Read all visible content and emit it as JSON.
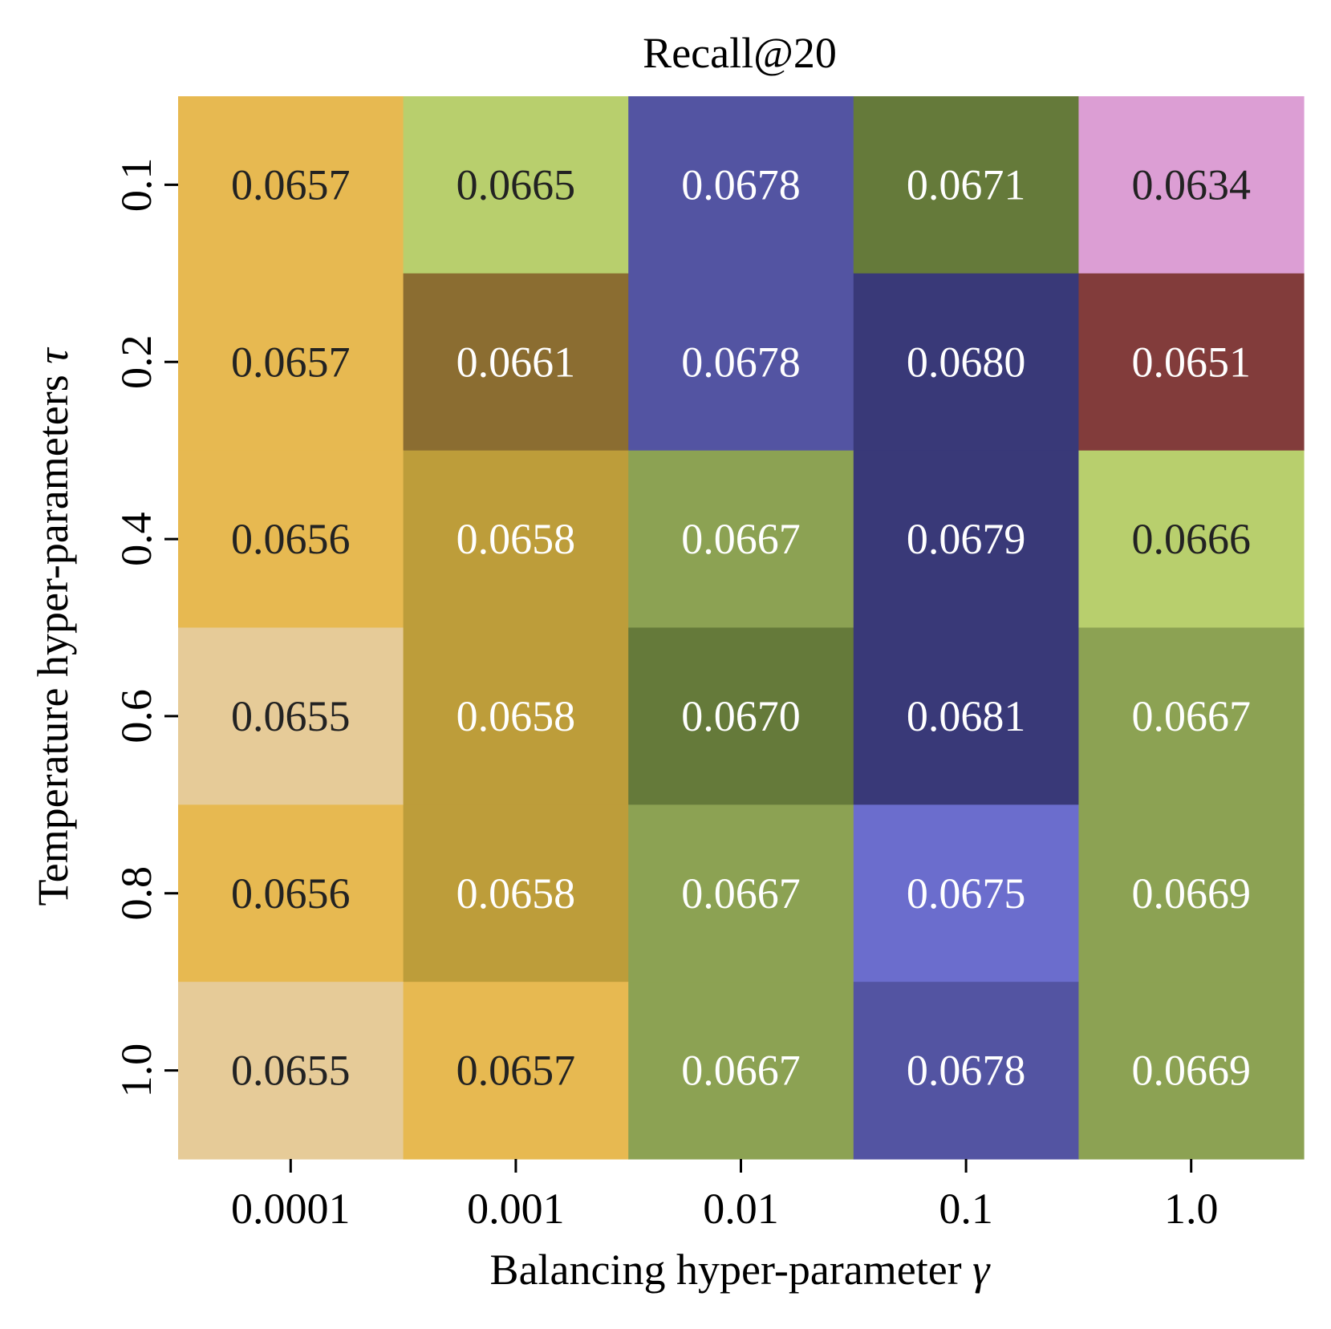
{
  "chart_data": {
    "type": "heatmap",
    "title": "Recall@20",
    "xlabel": "Balancing hyper-parameter",
    "xlabel_symbol": "γ",
    "ylabel": "Temperature hyper-parameters",
    "ylabel_symbol": "τ",
    "x_categories": [
      "0.0001",
      "0.001",
      "0.01",
      "0.1",
      "1.0"
    ],
    "y_categories": [
      "0.1",
      "0.2",
      "0.4",
      "0.6",
      "0.8",
      "1.0"
    ],
    "values": [
      [
        "0.0657",
        "0.0665",
        "0.0678",
        "0.0671",
        "0.0634"
      ],
      [
        "0.0657",
        "0.0661",
        "0.0678",
        "0.0680",
        "0.0651"
      ],
      [
        "0.0656",
        "0.0658",
        "0.0667",
        "0.0679",
        "0.0666"
      ],
      [
        "0.0655",
        "0.0658",
        "0.0670",
        "0.0681",
        "0.0667"
      ],
      [
        "0.0656",
        "0.0658",
        "0.0667",
        "0.0675",
        "0.0669"
      ],
      [
        "0.0655",
        "0.0657",
        "0.0667",
        "0.0678",
        "0.0669"
      ]
    ],
    "cell_colors": [
      [
        "#e7b951",
        "#b8cf6d",
        "#5354a2",
        "#657a3a",
        "#dc9ed4"
      ],
      [
        "#e7b951",
        "#8b6d31",
        "#5354a2",
        "#393978",
        "#823c3b"
      ],
      [
        "#e7b951",
        "#bd9d3a",
        "#8ca253",
        "#393978",
        "#b8cf6d"
      ],
      [
        "#e6cb98",
        "#bd9d3a",
        "#657a3a",
        "#393978",
        "#8ca253"
      ],
      [
        "#e7b951",
        "#bd9d3a",
        "#8ca253",
        "#6b6dcd",
        "#8ca253"
      ],
      [
        "#e6cb98",
        "#e7b951",
        "#8ca253",
        "#5354a2",
        "#8ca253"
      ]
    ],
    "text_colors": [
      [
        "#222222",
        "#222222",
        "#ffffff",
        "#ffffff",
        "#222222"
      ],
      [
        "#222222",
        "#ffffff",
        "#ffffff",
        "#ffffff",
        "#ffffff"
      ],
      [
        "#222222",
        "#ffffff",
        "#ffffff",
        "#ffffff",
        "#222222"
      ],
      [
        "#222222",
        "#ffffff",
        "#ffffff",
        "#ffffff",
        "#ffffff"
      ],
      [
        "#222222",
        "#ffffff",
        "#ffffff",
        "#ffffff",
        "#ffffff"
      ],
      [
        "#222222",
        "#222222",
        "#ffffff",
        "#ffffff",
        "#ffffff"
      ]
    ],
    "grid": false,
    "legend": "none"
  }
}
